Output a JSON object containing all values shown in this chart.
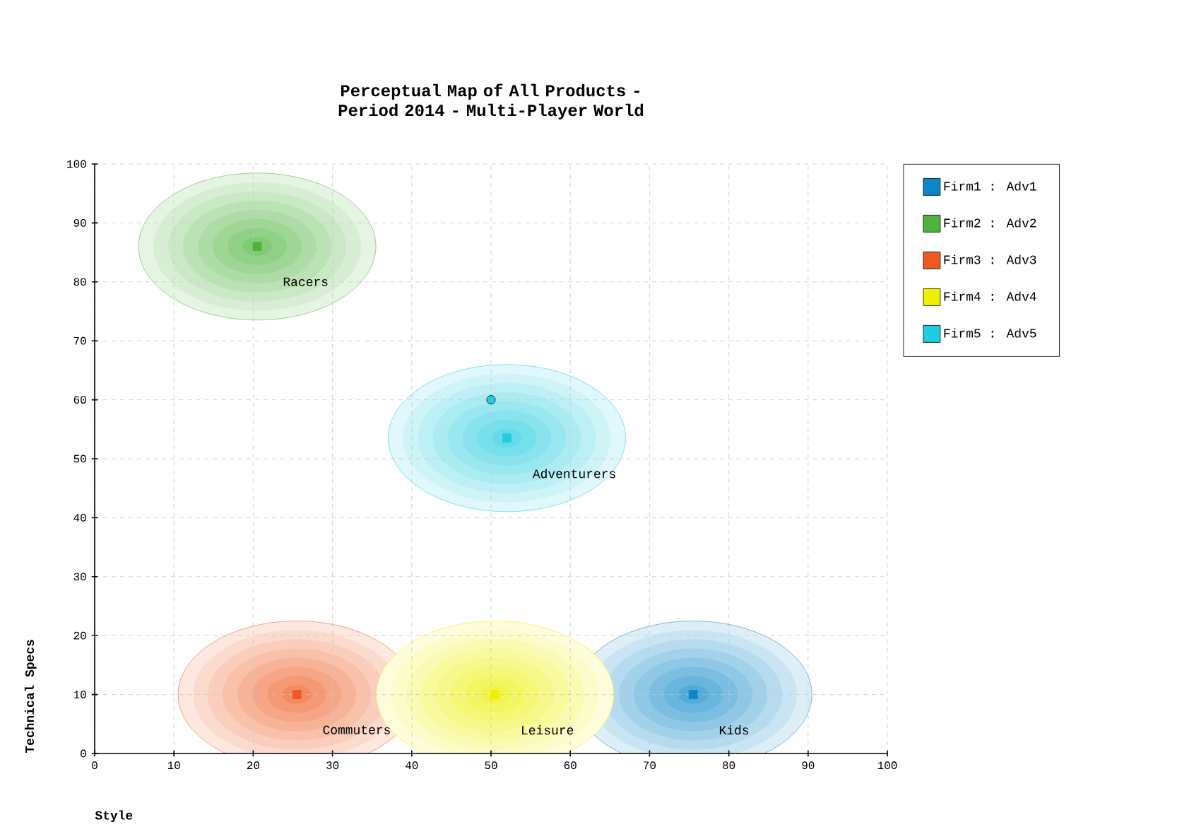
{
  "chart_data": {
    "type": "scatter",
    "title": "Perceptual Map of All Products - Period 2014 - Multi-Player World",
    "xlabel": "Style",
    "ylabel": "Technical Specs",
    "xlim": [
      0,
      100
    ],
    "ylim": [
      0,
      100
    ],
    "xticks": [
      0,
      10,
      20,
      30,
      40,
      50,
      60,
      70,
      80,
      90,
      100
    ],
    "yticks": [
      0,
      10,
      20,
      30,
      40,
      50,
      60,
      70,
      80,
      90,
      100
    ],
    "grid": true,
    "legend": "top right",
    "marker": "square",
    "series": [
      {
        "name": "Firm1 : Adv1",
        "color": "#0b87c8",
        "x": [
          75.5
        ],
        "values": [
          10
        ]
      },
      {
        "name": "Firm2 : Adv2",
        "color": "#4db33d",
        "x": [
          20.5
        ],
        "values": [
          86
        ]
      },
      {
        "name": "Firm3 : Adv3",
        "color": "#ee5a1f",
        "x": [
          25.5
        ],
        "values": [
          10
        ]
      },
      {
        "name": "Firm4 : Adv4",
        "color": "#eef000",
        "x": [
          50.5
        ],
        "values": [
          10
        ]
      },
      {
        "name": "Firm5 : Adv5",
        "color": "#22cce0",
        "x": [
          52
        ],
        "values": [
          53.5
        ]
      },
      {
        "color": "#22cce0",
        "marker": "circle",
        "x": [
          50
        ],
        "values": [
          60
        ]
      }
    ],
    "annotations": [
      "Kids",
      "Racers",
      "Commuters",
      "Leisure",
      "Adventurers"
    ]
  }
}
